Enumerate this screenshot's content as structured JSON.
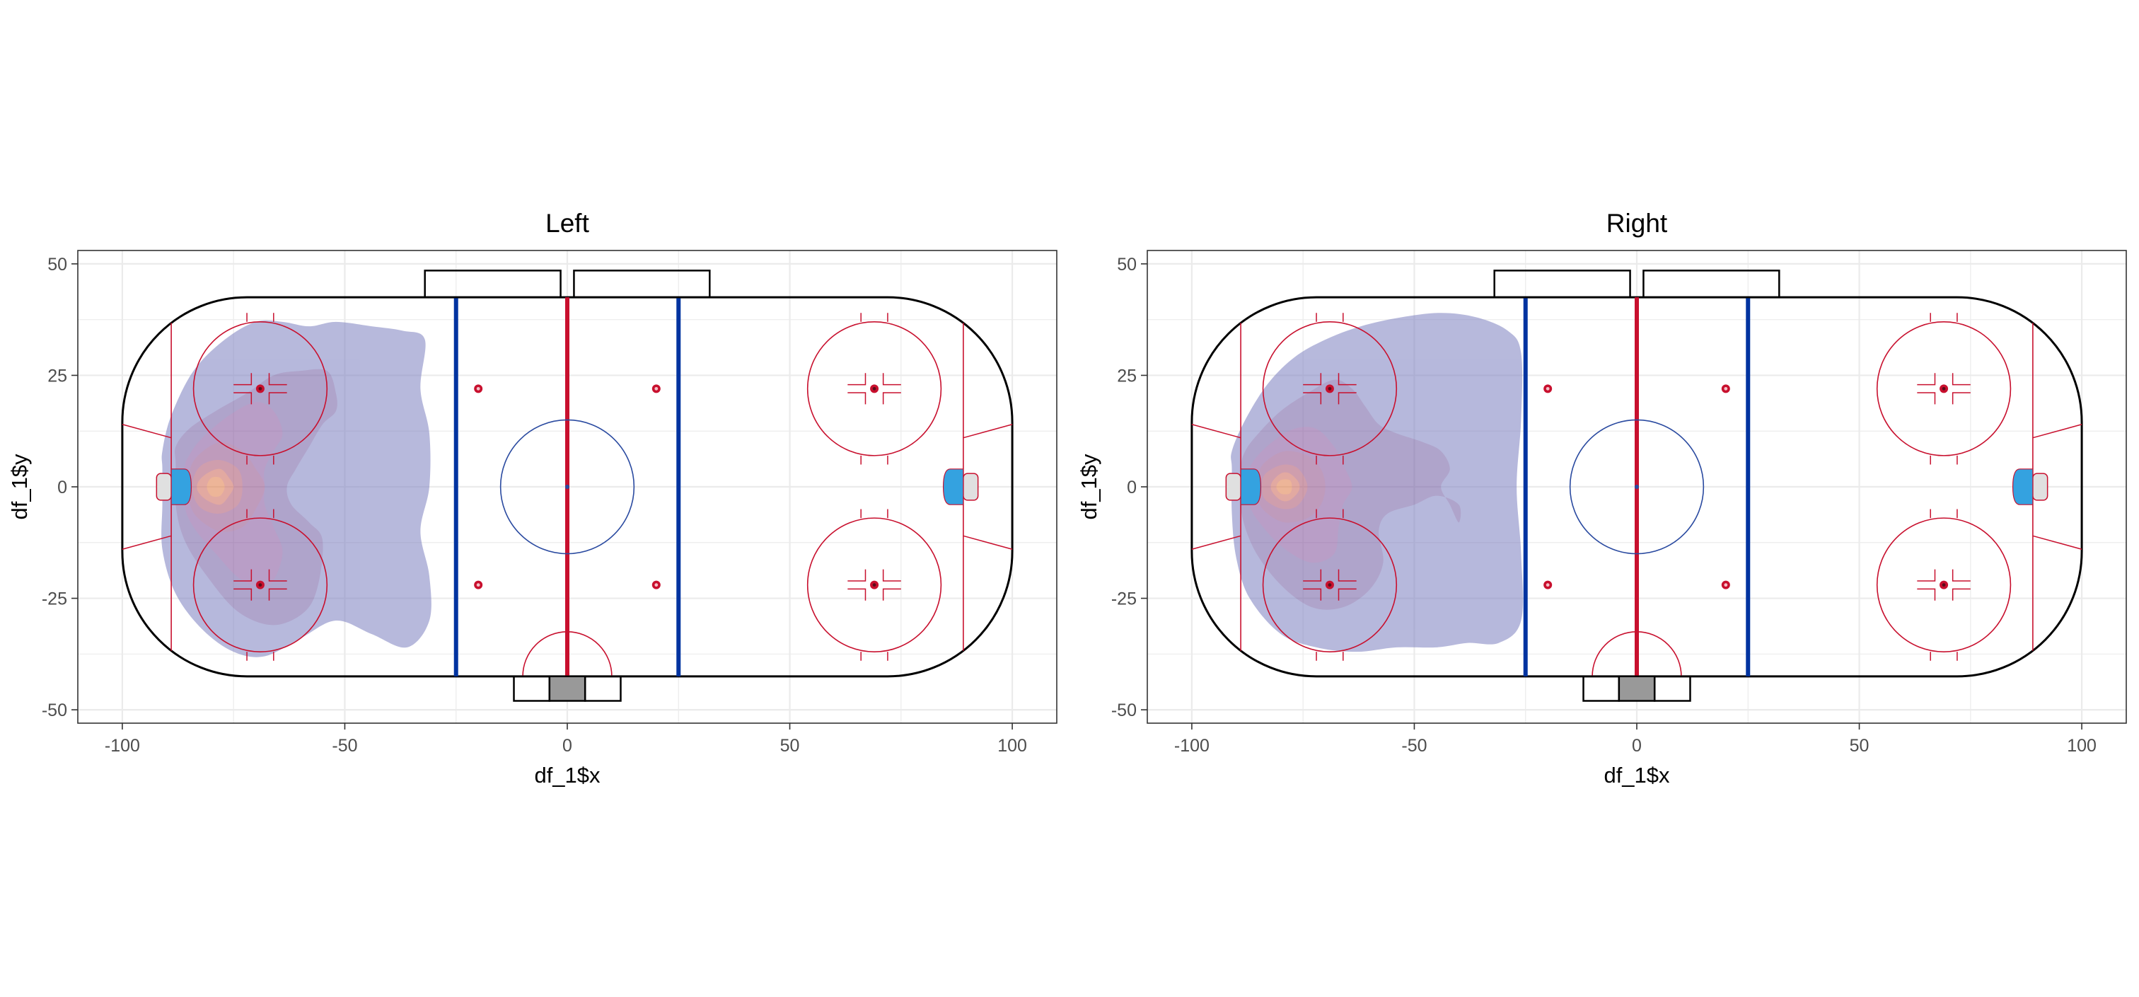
{
  "figure": {
    "background": "#ffffff"
  },
  "chart_data": [
    {
      "type": "heatmap",
      "subtype": "2d-density-contour-over-hockey-rink",
      "title": "Left",
      "xlabel": "df_1$x",
      "ylabel": "df_1$y",
      "xlim": [
        -110,
        110
      ],
      "ylim": [
        -53,
        53
      ],
      "x_ticks": [
        -100,
        -50,
        0,
        50,
        100
      ],
      "x_tick_labels": [
        "-100",
        "-50",
        "0",
        "50",
        "100"
      ],
      "y_ticks": [
        -50,
        -25,
        0,
        25,
        50
      ],
      "y_tick_labels": [
        "-50",
        "-25",
        "0",
        "25",
        "50"
      ],
      "grid": true,
      "legend": "none",
      "density_peak": [
        -79,
        0
      ],
      "density_levels": [
        {
          "level": 1,
          "color": "#7c7fc0",
          "points": [
            [
              -91,
              4
            ],
            [
              -91,
              -4
            ],
            [
              -91,
              -14
            ],
            [
              -88,
              -24
            ],
            [
              -82,
              -32
            ],
            [
              -75,
              -37
            ],
            [
              -68,
              -38
            ],
            [
              -60,
              -34
            ],
            [
              -52,
              -30
            ],
            [
              -44,
              -33
            ],
            [
              -36,
              -36
            ],
            [
              -31,
              -30
            ],
            [
              -31,
              -20
            ],
            [
              -33,
              -10
            ],
            [
              -31,
              0
            ],
            [
              -31,
              12
            ],
            [
              -33,
              22
            ],
            [
              -32,
              33
            ],
            [
              -37,
              35
            ],
            [
              -44,
              36
            ],
            [
              -52,
              37
            ],
            [
              -58,
              36
            ],
            [
              -64,
              37
            ],
            [
              -70,
              37
            ],
            [
              -77,
              33
            ],
            [
              -84,
              26
            ],
            [
              -89,
              16
            ],
            [
              -91,
              8
            ]
          ]
        },
        {
          "level": 2,
          "color": "#6e5aa2",
          "points": [
            [
              -88,
              5
            ],
            [
              -88,
              -4
            ],
            [
              -86,
              -12
            ],
            [
              -81,
              -20
            ],
            [
              -74,
              -28
            ],
            [
              -66,
              -31
            ],
            [
              -59,
              -28
            ],
            [
              -56,
              -22
            ],
            [
              -55,
              -12
            ],
            [
              -58,
              -8
            ],
            [
              -62,
              -4
            ],
            [
              -63,
              0
            ],
            [
              -61,
              4
            ],
            [
              -58,
              9
            ],
            [
              -55,
              14
            ],
            [
              -52,
              17
            ],
            [
              -52,
              21
            ],
            [
              -54,
              26
            ],
            [
              -60,
              26
            ],
            [
              -66,
              25
            ],
            [
              -72,
              21
            ],
            [
              -79,
              17
            ],
            [
              -85,
              13
            ],
            [
              -88,
              9
            ]
          ]
        },
        {
          "level": 3,
          "color": "#80509a",
          "points": [
            [
              -86,
              4
            ],
            [
              -86,
              -4
            ],
            [
              -84,
              -9
            ],
            [
              -79,
              -15
            ],
            [
              -73,
              -21
            ],
            [
              -67,
              -22
            ],
            [
              -64,
              -15
            ],
            [
              -66,
              -9
            ],
            [
              -68,
              -4
            ],
            [
              -68,
              0
            ],
            [
              -68,
              4
            ],
            [
              -66,
              8
            ],
            [
              -64,
              12
            ],
            [
              -66,
              17
            ],
            [
              -70,
              19
            ],
            [
              -76,
              16
            ],
            [
              -82,
              11
            ],
            [
              -85,
              7
            ]
          ]
        },
        {
          "level": 4,
          "color": "#8c4a86",
          "points": [
            [
              -85,
              3
            ],
            [
              -85,
              -3
            ],
            [
              -83,
              -7
            ],
            [
              -78,
              -10
            ],
            [
              -73,
              -9
            ],
            [
              -70,
              -5
            ],
            [
              -68,
              0
            ],
            [
              -70,
              4
            ],
            [
              -73,
              8
            ],
            [
              -78,
              10
            ],
            [
              -83,
              7
            ]
          ]
        },
        {
          "level": 5,
          "color": "#a94f6b",
          "points": [
            [
              -84,
              2
            ],
            [
              -84,
              -2
            ],
            [
              -82,
              -5
            ],
            [
              -78,
              -6
            ],
            [
              -74,
              -4
            ],
            [
              -73,
              0
            ],
            [
              -74,
              4
            ],
            [
              -78,
              6
            ],
            [
              -82,
              5
            ]
          ]
        },
        {
          "level": 6,
          "color": "#cc6355",
          "points": [
            [
              -83,
              1
            ],
            [
              -83,
              -1
            ],
            [
              -81,
              -3
            ],
            [
              -78,
              -4
            ],
            [
              -76,
              -2
            ],
            [
              -75,
              0
            ],
            [
              -76,
              2
            ],
            [
              -78,
              4
            ],
            [
              -81,
              3
            ]
          ]
        },
        {
          "level": 7,
          "color": "#e07a44",
          "points": [
            [
              -81,
              0
            ],
            [
              -80,
              -2
            ],
            [
              -78,
              -2
            ],
            [
              -77,
              0
            ],
            [
              -78,
              2
            ],
            [
              -80,
              2
            ]
          ]
        }
      ]
    },
    {
      "type": "heatmap",
      "subtype": "2d-density-contour-over-hockey-rink",
      "title": "Right",
      "xlabel": "df_1$x",
      "ylabel": "df_1$y",
      "xlim": [
        -110,
        110
      ],
      "ylim": [
        -53,
        53
      ],
      "x_ticks": [
        -100,
        -50,
        0,
        50,
        100
      ],
      "x_tick_labels": [
        "-100",
        "-50",
        "0",
        "50",
        "100"
      ],
      "y_ticks": [
        -50,
        -25,
        0,
        25,
        50
      ],
      "y_tick_labels": [
        "-50",
        "-25",
        "0",
        "25",
        "50"
      ],
      "grid": true,
      "legend": "none",
      "density_peak": [
        -79,
        0
      ],
      "density_levels": [
        {
          "level": 1,
          "color": "#7c7fc0",
          "points": [
            [
              -91,
              4
            ],
            [
              -91,
              -6
            ],
            [
              -90,
              -16
            ],
            [
              -87,
              -25
            ],
            [
              -80,
              -33
            ],
            [
              -72,
              -36
            ],
            [
              -63,
              -37
            ],
            [
              -54,
              -36
            ],
            [
              -45,
              -36
            ],
            [
              -38,
              -35
            ],
            [
              -31,
              -35
            ],
            [
              -26,
              -30
            ],
            [
              -26,
              -15
            ],
            [
              -27,
              0
            ],
            [
              -26,
              15
            ],
            [
              -26,
              30
            ],
            [
              -29,
              35
            ],
            [
              -36,
              38
            ],
            [
              -44,
              39
            ],
            [
              -53,
              38
            ],
            [
              -62,
              36
            ],
            [
              -70,
              33
            ],
            [
              -77,
              29
            ],
            [
              -83,
              23
            ],
            [
              -88,
              15
            ],
            [
              -91,
              8
            ]
          ]
        },
        {
          "level": 2,
          "color": "#6e5aa2",
          "points": [
            [
              -89,
              4
            ],
            [
              -89,
              -5
            ],
            [
              -86,
              -14
            ],
            [
              -80,
              -22
            ],
            [
              -73,
              -27
            ],
            [
              -66,
              -27
            ],
            [
              -60,
              -23
            ],
            [
              -57,
              -17
            ],
            [
              -58,
              -10
            ],
            [
              -56,
              -6
            ],
            [
              -50,
              -4
            ],
            [
              -45,
              -2
            ],
            [
              -40,
              -4
            ],
            [
              -40,
              -8
            ],
            [
              -42,
              -4
            ],
            [
              -44,
              0
            ],
            [
              -42,
              4
            ],
            [
              -44,
              8
            ],
            [
              -48,
              10
            ],
            [
              -54,
              12
            ],
            [
              -58,
              14
            ],
            [
              -61,
              18
            ],
            [
              -64,
              22
            ],
            [
              -68,
              24
            ],
            [
              -74,
              21
            ],
            [
              -80,
              17
            ],
            [
              -85,
              12
            ],
            [
              -88,
              8
            ]
          ]
        },
        {
          "level": 3,
          "color": "#80509a",
          "points": [
            [
              -87,
              3
            ],
            [
              -87,
              -4
            ],
            [
              -84,
              -9
            ],
            [
              -79,
              -14
            ],
            [
              -73,
              -17
            ],
            [
              -68,
              -15
            ],
            [
              -67,
              -9
            ],
            [
              -66,
              -4
            ],
            [
              -64,
              0
            ],
            [
              -66,
              5
            ],
            [
              -68,
              9
            ],
            [
              -72,
              13
            ],
            [
              -77,
              13
            ],
            [
              -82,
              10
            ],
            [
              -86,
              6
            ]
          ]
        },
        {
          "level": 4,
          "color": "#8c4a86",
          "points": [
            [
              -85,
              3
            ],
            [
              -85,
              -3
            ],
            [
              -83,
              -6
            ],
            [
              -79,
              -8
            ],
            [
              -74,
              -7
            ],
            [
              -71,
              -4
            ],
            [
              -70,
              0
            ],
            [
              -71,
              4
            ],
            [
              -74,
              7
            ],
            [
              -79,
              8
            ],
            [
              -83,
              6
            ]
          ]
        },
        {
          "level": 5,
          "color": "#a94f6b",
          "points": [
            [
              -84,
              2
            ],
            [
              -84,
              -2
            ],
            [
              -82,
              -4
            ],
            [
              -79,
              -5
            ],
            [
              -76,
              -4
            ],
            [
              -74,
              0
            ],
            [
              -76,
              4
            ],
            [
              -79,
              5
            ],
            [
              -82,
              4
            ]
          ]
        },
        {
          "level": 6,
          "color": "#cc6355",
          "points": [
            [
              -82,
              1
            ],
            [
              -82,
              -1
            ],
            [
              -80,
              -3
            ],
            [
              -78,
              -3
            ],
            [
              -76,
              -1
            ],
            [
              -76,
              1
            ],
            [
              -78,
              3
            ],
            [
              -80,
              3
            ]
          ]
        },
        {
          "level": 7,
          "color": "#e07a44",
          "points": [
            [
              -81,
              0
            ],
            [
              -80,
              -1.5
            ],
            [
              -78,
              -1.5
            ],
            [
              -77.5,
              0
            ],
            [
              -78,
              1.5
            ],
            [
              -80,
              1.5
            ]
          ]
        }
      ]
    }
  ],
  "colors": {
    "grid": "#ebebeb",
    "panel_border": "#333333",
    "tick_text": "#4d4d4d",
    "label_text": "#000000",
    "red_line": "#c8102e",
    "blue_line": "#0033a0",
    "faceoff_red": "#c8102e",
    "center_circle": "#2a4aa0",
    "crease_blue": "#34a2e0",
    "crease_dark": "#1f4fa0",
    "net_fill": "#e0e0e0",
    "scorekeeper_box": "#999999",
    "density_alpha": 0.55
  }
}
